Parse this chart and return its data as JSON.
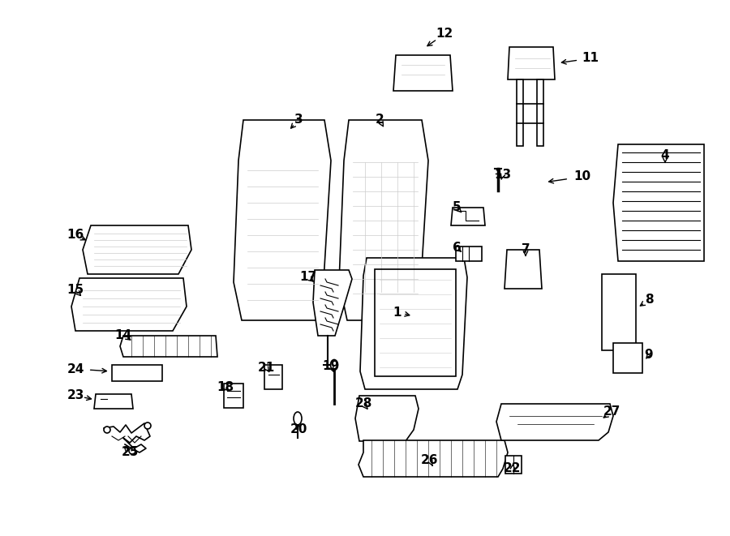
{
  "bg_color": "#ffffff",
  "line_color": "#000000",
  "gray_color": "#aaaaaa",
  "light_gray": "#cccccc"
}
